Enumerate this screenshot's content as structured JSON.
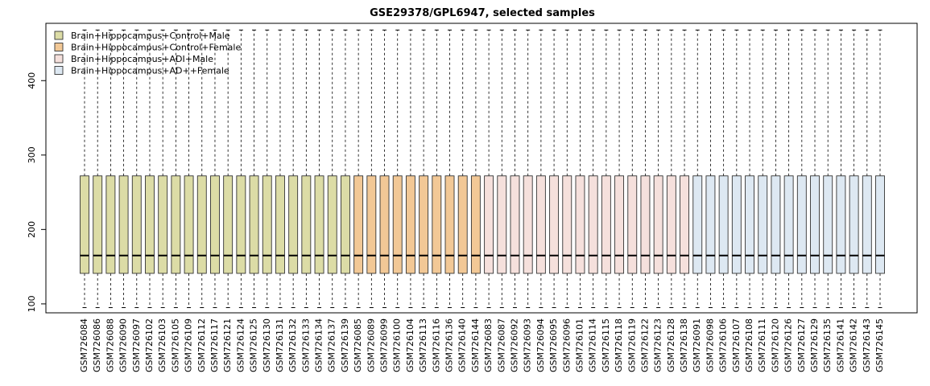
{
  "chart_data": {
    "type": "boxplot",
    "title": "GSE29378/GPL6947, selected samples",
    "xlabel": "",
    "ylabel": "",
    "ylim": [
      88,
      477
    ],
    "yticks": [
      100,
      200,
      300,
      400
    ],
    "grid": false,
    "legend_position": "top-left",
    "groups": [
      {
        "name": "Brain+Hippocampus+Control+Male",
        "color": "#dcdca6"
      },
      {
        "name": "Brain+Hippocampus+Control+Female",
        "color": "#f2c896"
      },
      {
        "name": "Brain+Hippocampus+ADI+Male",
        "color": "#f5e0dc"
      },
      {
        "name": "Brain+Hippocampus+AD++Female",
        "color": "#dde8f2"
      }
    ],
    "box_stats": {
      "whisker_low": 95,
      "q1": 141,
      "median": 165,
      "q3": 272,
      "whisker_high": 468
    },
    "samples": [
      {
        "name": "GSM726084",
        "group": 0
      },
      {
        "name": "GSM726086",
        "group": 0
      },
      {
        "name": "GSM726088",
        "group": 0
      },
      {
        "name": "GSM726090",
        "group": 0
      },
      {
        "name": "GSM726097",
        "group": 0
      },
      {
        "name": "GSM726102",
        "group": 0
      },
      {
        "name": "GSM726103",
        "group": 0
      },
      {
        "name": "GSM726105",
        "group": 0
      },
      {
        "name": "GSM726109",
        "group": 0
      },
      {
        "name": "GSM726112",
        "group": 0
      },
      {
        "name": "GSM726117",
        "group": 0
      },
      {
        "name": "GSM726121",
        "group": 0
      },
      {
        "name": "GSM726124",
        "group": 0
      },
      {
        "name": "GSM726125",
        "group": 0
      },
      {
        "name": "GSM726130",
        "group": 0
      },
      {
        "name": "GSM726131",
        "group": 0
      },
      {
        "name": "GSM726132",
        "group": 0
      },
      {
        "name": "GSM726133",
        "group": 0
      },
      {
        "name": "GSM726134",
        "group": 0
      },
      {
        "name": "GSM726137",
        "group": 0
      },
      {
        "name": "GSM726139",
        "group": 0
      },
      {
        "name": "GSM726085",
        "group": 1
      },
      {
        "name": "GSM726089",
        "group": 1
      },
      {
        "name": "GSM726099",
        "group": 1
      },
      {
        "name": "GSM726100",
        "group": 1
      },
      {
        "name": "GSM726104",
        "group": 1
      },
      {
        "name": "GSM726113",
        "group": 1
      },
      {
        "name": "GSM726116",
        "group": 1
      },
      {
        "name": "GSM726136",
        "group": 1
      },
      {
        "name": "GSM726140",
        "group": 1
      },
      {
        "name": "GSM726144",
        "group": 1
      },
      {
        "name": "GSM726083",
        "group": 2
      },
      {
        "name": "GSM726087",
        "group": 2
      },
      {
        "name": "GSM726092",
        "group": 2
      },
      {
        "name": "GSM726093",
        "group": 2
      },
      {
        "name": "GSM726094",
        "group": 2
      },
      {
        "name": "GSM726095",
        "group": 2
      },
      {
        "name": "GSM726096",
        "group": 2
      },
      {
        "name": "GSM726101",
        "group": 2
      },
      {
        "name": "GSM726114",
        "group": 2
      },
      {
        "name": "GSM726115",
        "group": 2
      },
      {
        "name": "GSM726118",
        "group": 2
      },
      {
        "name": "GSM726119",
        "group": 2
      },
      {
        "name": "GSM726122",
        "group": 2
      },
      {
        "name": "GSM726123",
        "group": 2
      },
      {
        "name": "GSM726128",
        "group": 2
      },
      {
        "name": "GSM726138",
        "group": 2
      },
      {
        "name": "GSM726091",
        "group": 3
      },
      {
        "name": "GSM726098",
        "group": 3
      },
      {
        "name": "GSM726106",
        "group": 3
      },
      {
        "name": "GSM726107",
        "group": 3
      },
      {
        "name": "GSM726108",
        "group": 3
      },
      {
        "name": "GSM726111",
        "group": 3
      },
      {
        "name": "GSM726120",
        "group": 3
      },
      {
        "name": "GSM726126",
        "group": 3
      },
      {
        "name": "GSM726127",
        "group": 3
      },
      {
        "name": "GSM726129",
        "group": 3
      },
      {
        "name": "GSM726135",
        "group": 3
      },
      {
        "name": "GSM726141",
        "group": 3
      },
      {
        "name": "GSM726142",
        "group": 3
      },
      {
        "name": "GSM726143",
        "group": 3
      },
      {
        "name": "GSM726145",
        "group": 3
      }
    ]
  }
}
